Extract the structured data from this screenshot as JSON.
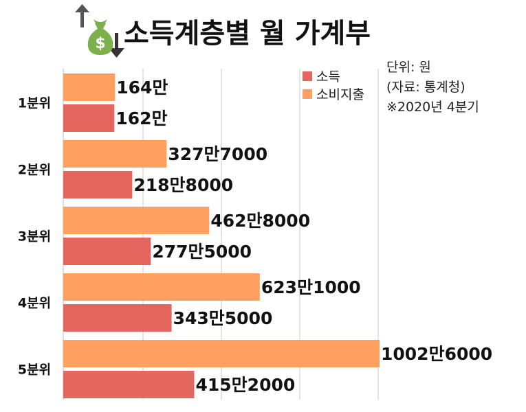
{
  "chart_data": {
    "type": "bar",
    "orientation": "horizontal",
    "title": "소득계층별 월 가계부",
    "notes": [
      "단위: 원",
      "(자료: 통계청)",
      "※2020년 4분기"
    ],
    "categories": [
      "1분위",
      "2분위",
      "3분위",
      "4분위",
      "5분위"
    ],
    "series": [
      {
        "name": "소비지출",
        "color": "#FFA060",
        "values": [
          1640000,
          3277000,
          4628000,
          6231000,
          10026000
        ],
        "labels": [
          "164만",
          "327만7000",
          "462만8000",
          "623만1000",
          "1002만6000"
        ]
      },
      {
        "name": "소득",
        "color": "#E3675E",
        "values": [
          1620000,
          2188000,
          2775000,
          3435000,
          4152000
        ],
        "labels": [
          "162만",
          "218만8000",
          "277만5000",
          "343만5000",
          "415만2000"
        ]
      }
    ],
    "legend": [
      {
        "name": "소득",
        "color": "#E3675E"
      },
      {
        "name": "소비지출",
        "color": "#FFA060"
      }
    ],
    "legend_position": "top-right",
    "xlim": [
      0,
      10026000
    ],
    "grid": true,
    "icon": "money-bag-icon"
  }
}
